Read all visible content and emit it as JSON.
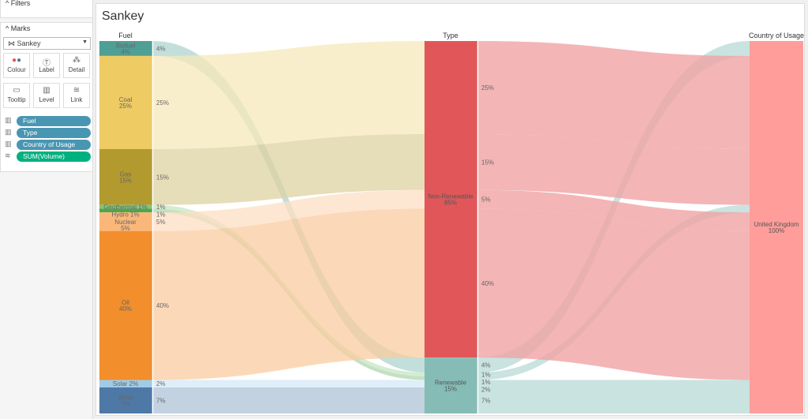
{
  "sidebar": {
    "filters_label": "Filters",
    "marks_label": "Marks",
    "mark_type": "Sankey",
    "buttons": [
      {
        "label": "Colour",
        "icon": "colour-icon"
      },
      {
        "label": "Label",
        "icon": "label-icon"
      },
      {
        "label": "Detail",
        "icon": "detail-icon"
      },
      {
        "label": "Tooltip",
        "icon": "tooltip-icon"
      },
      {
        "label": "Level",
        "icon": "level-icon"
      },
      {
        "label": "Link",
        "icon": "link-icon"
      }
    ],
    "pills": [
      {
        "label": "Fuel",
        "color": "#4996b2"
      },
      {
        "label": "Type",
        "color": "#4996b2"
      },
      {
        "label": "Country of Usage",
        "color": "#4996b2"
      },
      {
        "label": "SUM(Volume)",
        "color": "#00b180"
      }
    ]
  },
  "main": {
    "title": "Sankey"
  },
  "chart_data": {
    "type": "sankey",
    "levels": [
      "Fuel",
      "Type",
      "Country of Usage"
    ],
    "fuels": [
      {
        "name": "Biofuel",
        "pct": 4,
        "type": "Renewable",
        "color": "#4e9f95"
      },
      {
        "name": "Coal",
        "pct": 25,
        "type": "Non-Renewable",
        "color": "#eecb63"
      },
      {
        "name": "Gas",
        "pct": 15,
        "type": "Non-Renewable",
        "color": "#b39a2f"
      },
      {
        "name": "Geothermal",
        "pct": 1,
        "type": "Renewable",
        "color": "#7dc77a"
      },
      {
        "name": "Hydro",
        "pct": 1,
        "type": "Renewable",
        "color": "#4ea64b"
      },
      {
        "name": "Nuclear",
        "pct": 5,
        "type": "Non-Renewable",
        "color": "#fbb77a"
      },
      {
        "name": "Oil",
        "pct": 40,
        "type": "Non-Renewable",
        "color": "#f28e2b"
      },
      {
        "name": "Solar",
        "pct": 2,
        "type": "Renewable",
        "color": "#a0cbe8"
      },
      {
        "name": "Wind",
        "pct": 7,
        "type": "Renewable",
        "color": "#4e79a7"
      }
    ],
    "types": [
      {
        "name": "Non-Renewable",
        "pct": 85,
        "color": "#e15759",
        "link_color": "#f0a3a4"
      },
      {
        "name": "Renewable",
        "pct": 15,
        "color": "#86bcb6",
        "link_color": "#bcdcd8"
      }
    ],
    "countries": [
      {
        "name": "United Kingdom",
        "pct": 100,
        "color": "#ff9d9a"
      }
    ]
  }
}
